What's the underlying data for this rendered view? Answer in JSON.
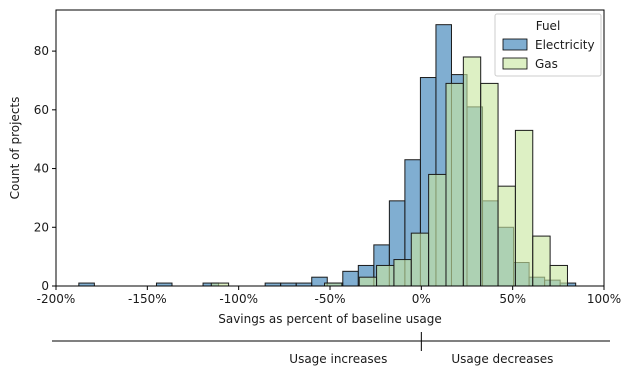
{
  "chart_data": {
    "type": "bar",
    "subtype": "histogram",
    "xlabel": "Savings as percent of baseline usage",
    "ylabel": "Count of projects",
    "xlim": [
      -200,
      100
    ],
    "ylim": [
      0,
      94
    ],
    "xticks": [
      "-200%",
      "-150%",
      "-100%",
      "-50%",
      "0%",
      "50%",
      "100%"
    ],
    "xtick_values": [
      -200,
      -150,
      -100,
      -50,
      0,
      50,
      100
    ],
    "yticks": [
      0,
      20,
      40,
      60,
      80
    ],
    "grid": false,
    "legend": {
      "title": "Fuel",
      "placement": "top-right"
    },
    "series": [
      {
        "name": "Electricity",
        "color": "#4f8fbf",
        "bins": [
          {
            "x0": -187.5,
            "x1": -179.0,
            "count": 1
          },
          {
            "x0": -145.0,
            "x1": -136.5,
            "count": 1
          },
          {
            "x0": -119.5,
            "x1": -111.0,
            "count": 1
          },
          {
            "x0": -85.5,
            "x1": -77.0,
            "count": 1
          },
          {
            "x0": -77.0,
            "x1": -68.5,
            "count": 1
          },
          {
            "x0": -68.5,
            "x1": -60.0,
            "count": 1
          },
          {
            "x0": -60.0,
            "x1": -51.5,
            "count": 3
          },
          {
            "x0": -51.5,
            "x1": -43.0,
            "count": 1
          },
          {
            "x0": -43.0,
            "x1": -34.5,
            "count": 5
          },
          {
            "x0": -34.5,
            "x1": -26.0,
            "count": 7
          },
          {
            "x0": -26.0,
            "x1": -17.5,
            "count": 14
          },
          {
            "x0": -17.5,
            "x1": -9.0,
            "count": 29
          },
          {
            "x0": -9.0,
            "x1": -0.5,
            "count": 43
          },
          {
            "x0": -0.5,
            "x1": 8.0,
            "count": 71
          },
          {
            "x0": 8.0,
            "x1": 16.5,
            "count": 89
          },
          {
            "x0": 16.5,
            "x1": 25.0,
            "count": 72
          },
          {
            "x0": 25.0,
            "x1": 33.5,
            "count": 61
          },
          {
            "x0": 33.5,
            "x1": 42.0,
            "count": 29
          },
          {
            "x0": 42.0,
            "x1": 50.5,
            "count": 20
          },
          {
            "x0": 50.5,
            "x1": 59.0,
            "count": 8
          },
          {
            "x0": 59.0,
            "x1": 67.5,
            "count": 3
          },
          {
            "x0": 67.5,
            "x1": 76.0,
            "count": 2
          },
          {
            "x0": 76.0,
            "x1": 84.5,
            "count": 1
          }
        ]
      },
      {
        "name": "Gas",
        "color": "#c8e6a0",
        "bins": [
          {
            "x0": -115.0,
            "x1": -105.5,
            "count": 1
          },
          {
            "x0": -53.0,
            "x1": -43.5,
            "count": 1
          },
          {
            "x0": -34.0,
            "x1": -24.5,
            "count": 3
          },
          {
            "x0": -24.5,
            "x1": -15.0,
            "count": 7
          },
          {
            "x0": -15.0,
            "x1": -5.5,
            "count": 9
          },
          {
            "x0": -5.5,
            "x1": 4.0,
            "count": 18
          },
          {
            "x0": 4.0,
            "x1": 13.5,
            "count": 38
          },
          {
            "x0": 13.5,
            "x1": 23.0,
            "count": 69
          },
          {
            "x0": 23.0,
            "x1": 32.5,
            "count": 78
          },
          {
            "x0": 32.5,
            "x1": 42.0,
            "count": 69
          },
          {
            "x0": 42.0,
            "x1": 51.5,
            "count": 34
          },
          {
            "x0": 51.5,
            "x1": 61.0,
            "count": 53
          },
          {
            "x0": 61.0,
            "x1": 70.5,
            "count": 17
          },
          {
            "x0": 70.5,
            "x1": 80.0,
            "count": 7
          }
        ]
      }
    ],
    "annotations": {
      "left": "Usage increases",
      "right": "Usage decreases",
      "divider_at": 0
    }
  }
}
